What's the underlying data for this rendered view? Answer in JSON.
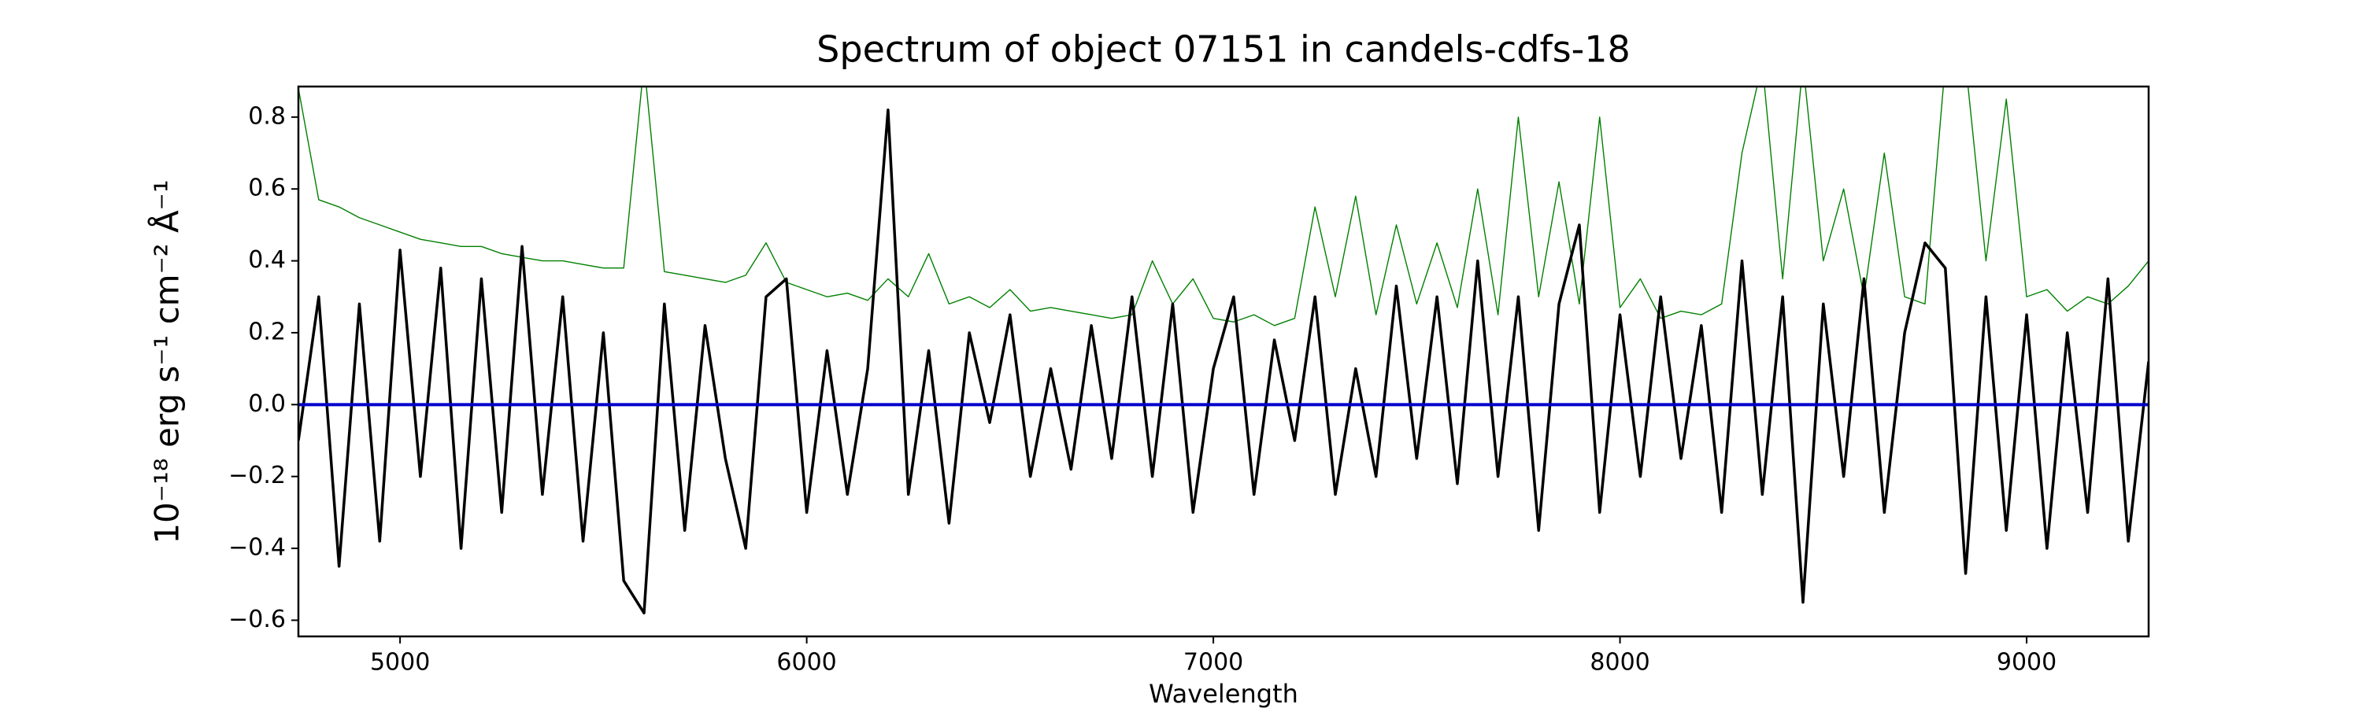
{
  "chart_data": {
    "type": "line",
    "title": "Spectrum of object 07151 in candels-cdfs-18",
    "xlabel": "Wavelength",
    "ylabel": "10⁻¹⁸ erg s⁻¹ cm⁻² Å⁻¹",
    "xlim": [
      4750,
      9300
    ],
    "ylim": [
      -0.645,
      0.885
    ],
    "xticks": [
      5000,
      6000,
      7000,
      8000,
      9000
    ],
    "yticks": [
      {
        "value": -0.6,
        "label": "−0.6"
      },
      {
        "value": -0.4,
        "label": "−0.4"
      },
      {
        "value": -0.2,
        "label": "−0.2"
      },
      {
        "value": 0,
        "label": "0.0"
      },
      0.2,
      0.4,
      0.6,
      0.8
    ],
    "grid": false,
    "x": [
      4750,
      4800,
      4850,
      4900,
      4950,
      5000,
      5050,
      5100,
      5150,
      5200,
      5250,
      5300,
      5350,
      5400,
      5450,
      5500,
      5550,
      5600,
      5650,
      5700,
      5750,
      5800,
      5850,
      5900,
      5950,
      6000,
      6050,
      6100,
      6150,
      6200,
      6250,
      6300,
      6350,
      6400,
      6450,
      6500,
      6550,
      6600,
      6650,
      6700,
      6750,
      6800,
      6850,
      6900,
      6950,
      7000,
      7050,
      7100,
      7150,
      7200,
      7250,
      7300,
      7350,
      7400,
      7450,
      7500,
      7550,
      7600,
      7650,
      7700,
      7750,
      7800,
      7850,
      7900,
      7950,
      8000,
      8050,
      8100,
      8150,
      8200,
      8250,
      8300,
      8350,
      8400,
      8450,
      8500,
      8550,
      8600,
      8650,
      8700,
      8750,
      8800,
      8850,
      8900,
      8950,
      9000,
      9050,
      9100,
      9150,
      9200,
      9250,
      9300
    ],
    "series": [
      {
        "color": "#008000",
        "width": 1.4,
        "values": [
          0.88,
          0.57,
          0.55,
          0.52,
          0.5,
          0.48,
          0.46,
          0.45,
          0.44,
          0.44,
          0.42,
          0.41,
          0.4,
          0.4,
          0.39,
          0.38,
          0.38,
          0.95,
          0.37,
          0.36,
          0.35,
          0.34,
          0.36,
          0.45,
          0.34,
          0.32,
          0.3,
          0.31,
          0.29,
          0.35,
          0.3,
          0.42,
          0.28,
          0.3,
          0.27,
          0.32,
          0.26,
          0.27,
          0.26,
          0.25,
          0.24,
          0.25,
          0.4,
          0.28,
          0.35,
          0.24,
          0.23,
          0.25,
          0.22,
          0.24,
          0.55,
          0.3,
          0.58,
          0.25,
          0.5,
          0.28,
          0.45,
          0.27,
          0.6,
          0.25,
          0.8,
          0.3,
          0.62,
          0.28,
          0.8,
          0.27,
          0.35,
          0.24,
          0.26,
          0.25,
          0.28,
          0.7,
          0.95,
          0.35,
          0.95,
          0.4,
          0.6,
          0.3,
          0.7,
          0.3,
          0.28,
          0.95,
          0.95,
          0.4,
          0.85,
          0.3,
          0.32,
          0.26,
          0.3,
          0.28,
          0.33,
          0.4
        ]
      },
      {
        "color": "#000000",
        "width": 3.5,
        "values": [
          -0.1,
          0.3,
          -0.45,
          0.28,
          -0.38,
          0.43,
          -0.2,
          0.38,
          -0.4,
          0.35,
          -0.3,
          0.44,
          -0.25,
          0.3,
          -0.38,
          0.2,
          -0.49,
          -0.58,
          0.28,
          -0.35,
          0.22,
          -0.15,
          -0.4,
          0.3,
          0.35,
          -0.3,
          0.15,
          -0.25,
          0.1,
          0.82,
          -0.25,
          0.15,
          -0.33,
          0.2,
          -0.05,
          0.25,
          -0.2,
          0.1,
          -0.18,
          0.22,
          -0.15,
          0.3,
          -0.2,
          0.28,
          -0.3,
          0.1,
          0.3,
          -0.25,
          0.18,
          -0.1,
          0.3,
          -0.25,
          0.1,
          -0.2,
          0.33,
          -0.15,
          0.3,
          -0.22,
          0.4,
          -0.2,
          0.3,
          -0.35,
          0.28,
          0.5,
          -0.3,
          0.25,
          -0.2,
          0.3,
          -0.15,
          0.22,
          -0.3,
          0.4,
          -0.25,
          0.3,
          -0.55,
          0.28,
          -0.2,
          0.35,
          -0.3,
          0.2,
          0.45,
          0.38,
          -0.47,
          0.3,
          -0.35,
          0.25,
          -0.4,
          0.2,
          -0.3,
          0.35,
          -0.38,
          0.12
        ]
      },
      {
        "color": "#0000cc",
        "width": 4,
        "values": [
          0,
          0,
          0,
          0,
          0,
          0,
          0,
          0,
          0,
          0,
          0,
          0,
          0,
          0,
          0,
          0,
          0,
          0,
          0,
          0,
          0,
          0,
          0,
          0,
          0,
          0,
          0,
          0,
          0,
          0,
          0,
          0,
          0,
          0,
          0,
          0,
          0,
          0,
          0,
          0,
          0,
          0,
          0,
          0,
          0,
          0,
          0,
          0,
          0,
          0,
          0,
          0,
          0,
          0,
          0,
          0,
          0,
          0,
          0,
          0,
          0,
          0,
          0,
          0,
          0,
          0,
          0,
          0,
          0,
          0,
          0,
          0,
          0,
          0,
          0,
          0,
          0,
          0,
          0,
          0,
          0,
          0,
          0,
          0,
          0,
          0,
          0,
          0,
          0,
          0,
          0,
          0
        ]
      }
    ]
  }
}
